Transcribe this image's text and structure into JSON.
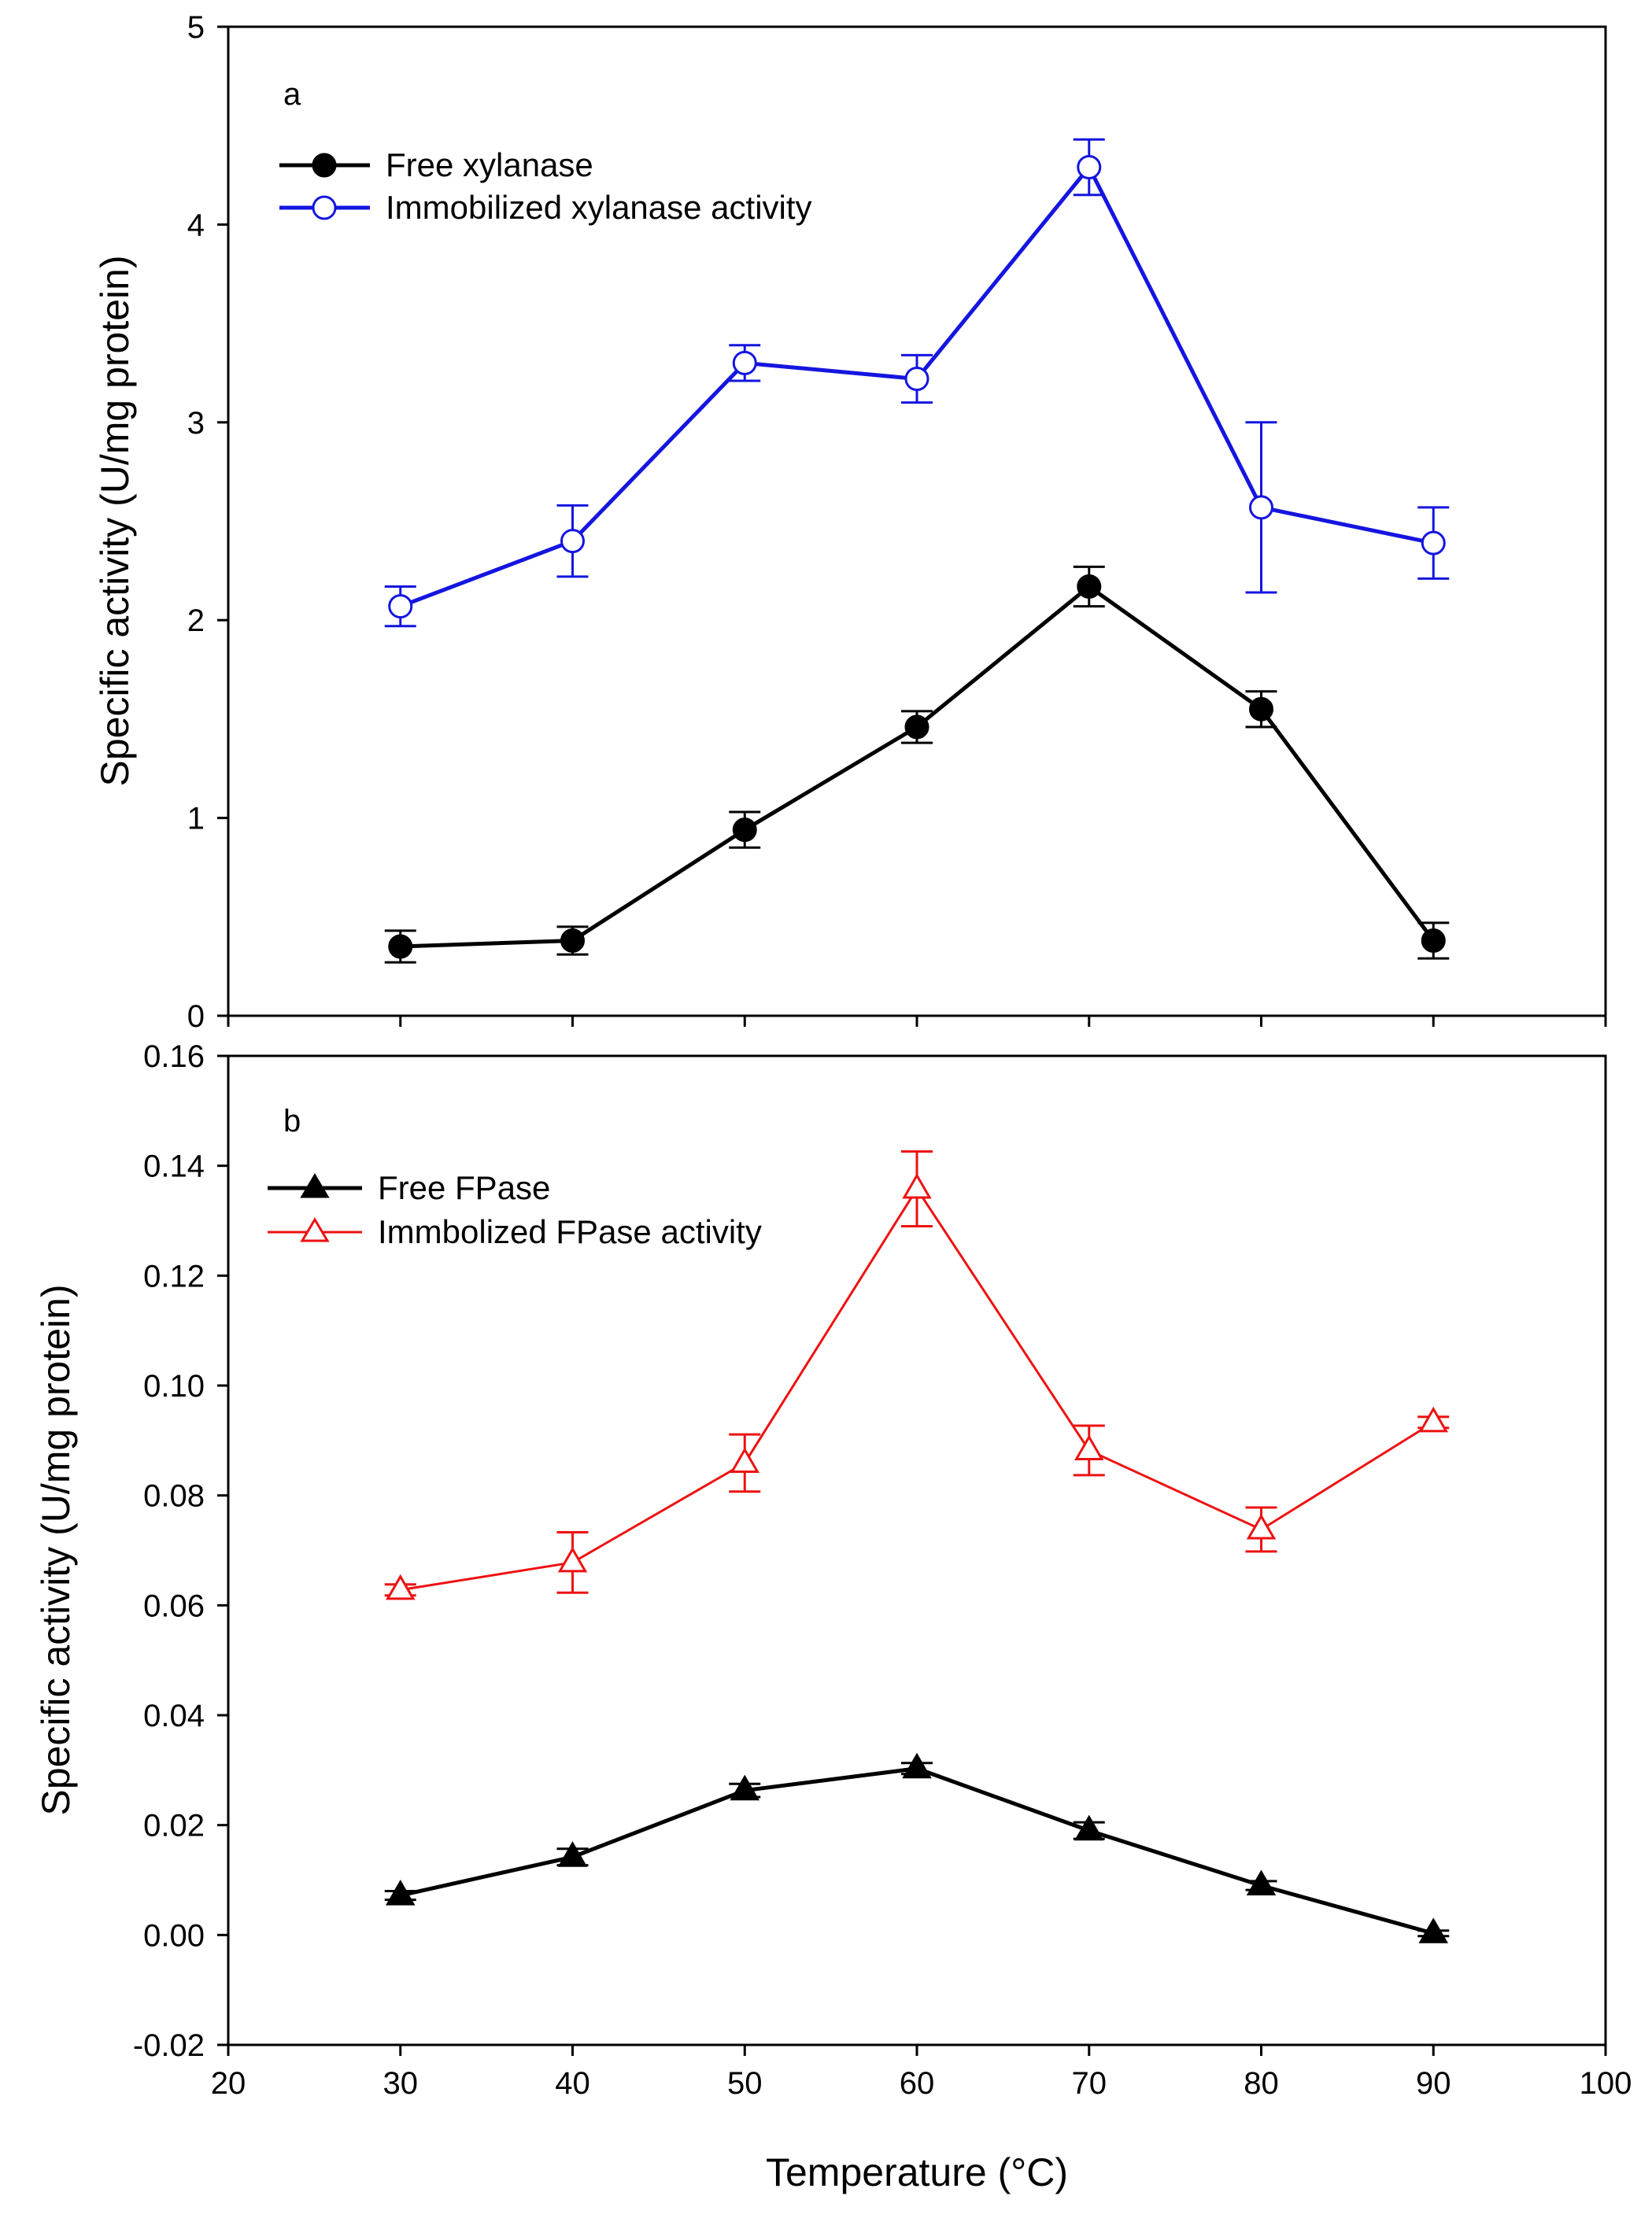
{
  "figure": {
    "x_axis_title": "Temperature (°C)"
  },
  "chart_data": [
    {
      "type": "line",
      "panel_label": "a",
      "title": "",
      "xlabel": "",
      "ylabel": "Specific activity (U/mg protein)",
      "xlim": [
        20,
        100
      ],
      "ylim": [
        0,
        5
      ],
      "xticks": [
        20,
        30,
        40,
        50,
        60,
        70,
        80,
        90,
        100
      ],
      "yticks": [
        0,
        1,
        2,
        3,
        4,
        5
      ],
      "ytick_labels": [
        "0",
        "1",
        "2",
        "3",
        "4",
        "5"
      ],
      "show_x_tick_labels": false,
      "grid": false,
      "legend_position": "top-left",
      "x": [
        30,
        40,
        50,
        60,
        70,
        80,
        90
      ],
      "series": [
        {
          "name": "Free xylanase",
          "marker": "circle-filled",
          "color": "#000000",
          "values": [
            0.35,
            0.38,
            0.94,
            1.46,
            2.17,
            1.55,
            0.38
          ],
          "errors": [
            0.08,
            0.07,
            0.09,
            0.08,
            0.1,
            0.09,
            0.09
          ]
        },
        {
          "name": "Immobilized xylanase activity",
          "marker": "circle-open",
          "color": "#1515e0",
          "values": [
            2.07,
            2.4,
            3.3,
            3.22,
            4.29,
            2.57,
            2.39
          ],
          "errors": [
            0.1,
            0.18,
            0.09,
            0.12,
            0.14,
            0.43,
            0.18
          ]
        }
      ]
    },
    {
      "type": "line",
      "panel_label": "b",
      "title": "",
      "xlabel": "Temperature (°C)",
      "ylabel": "Specific activity (U/mg protein)",
      "xlim": [
        20,
        100
      ],
      "ylim": [
        -0.02,
        0.16
      ],
      "xticks": [
        20,
        30,
        40,
        50,
        60,
        70,
        80,
        90,
        100
      ],
      "xtick_labels": [
        "20",
        "30",
        "40",
        "50",
        "60",
        "70",
        "80",
        "90",
        "100"
      ],
      "yticks": [
        -0.02,
        0.0,
        0.02,
        0.04,
        0.06,
        0.08,
        0.1,
        0.12,
        0.14,
        0.16
      ],
      "ytick_labels": [
        "-0.02",
        "0.00",
        "0.02",
        "0.04",
        "0.06",
        "0.08",
        "0.10",
        "0.12",
        "0.14",
        "0.16"
      ],
      "show_x_tick_labels": true,
      "grid": false,
      "legend_position": "top-left",
      "x": [
        30,
        40,
        50,
        60,
        70,
        80,
        90
      ],
      "series": [
        {
          "name": "Free FPase",
          "marker": "triangle-filled",
          "color": "#000000",
          "values": [
            0.0072,
            0.0142,
            0.0263,
            0.0303,
            0.019,
            0.009,
            0.0003
          ],
          "errors": [
            0.0008,
            0.0015,
            0.0012,
            0.001,
            0.0015,
            0.0008,
            0.0005
          ]
        },
        {
          "name": "Immbolized FPase activity",
          "marker": "triangle-open",
          "color": "#ee1111",
          "values": [
            0.0628,
            0.0678,
            0.0859,
            0.1358,
            0.0882,
            0.0738,
            0.0933
          ],
          "errors": [
            0.001,
            0.0055,
            0.0052,
            0.0068,
            0.0045,
            0.004,
            0.001
          ]
        }
      ]
    }
  ]
}
